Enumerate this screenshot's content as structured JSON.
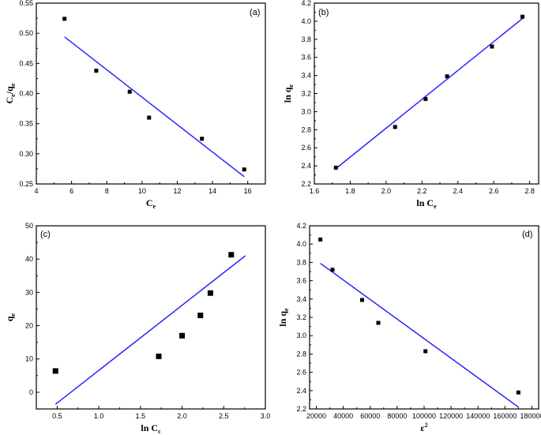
{
  "chart_data": [
    {
      "id": "a",
      "type": "scatter",
      "panel_label": "(a)",
      "xlabel": "Ce",
      "xlabel_main": "C",
      "xlabel_sub": "e",
      "ylabel": "Ce/qe",
      "ylabel_parts": [
        "C",
        "e",
        "/q",
        "e",
        ""
      ],
      "xlim": [
        4,
        17
      ],
      "ylim": [
        0.25,
        0.55
      ],
      "xticks": [
        4,
        6,
        8,
        10,
        12,
        14,
        16
      ],
      "yticks": [
        0.25,
        0.3,
        0.35,
        0.4,
        0.45,
        0.5,
        0.55
      ],
      "ytick_decimals": 2,
      "xtick_decimals": 0,
      "x": [
        5.6,
        7.4,
        9.3,
        10.4,
        13.4,
        15.8
      ],
      "y": [
        0.524,
        0.438,
        0.403,
        0.36,
        0.325,
        0.274
      ],
      "fit": {
        "x": [
          5.6,
          15.8
        ],
        "y": [
          0.494,
          0.262
        ]
      }
    },
    {
      "id": "b",
      "type": "scatter",
      "panel_label": "(b)",
      "xlabel": "ln Ce",
      "xlabel_main": "ln C",
      "xlabel_sub": "e",
      "ylabel": "ln qe",
      "ylabel_parts": [
        "ln q",
        "e",
        "",
        "",
        ""
      ],
      "xlim": [
        1.6,
        2.85
      ],
      "ylim": [
        2.2,
        4.2
      ],
      "xticks": [
        1.6,
        1.8,
        2.0,
        2.2,
        2.4,
        2.6,
        2.8
      ],
      "yticks": [
        2.2,
        2.4,
        2.6,
        2.8,
        3.0,
        3.2,
        3.4,
        3.6,
        3.8,
        4.0,
        4.2
      ],
      "ytick_decimals": 1,
      "xtick_decimals": 1,
      "x": [
        1.72,
        2.05,
        2.22,
        2.34,
        2.59,
        2.76
      ],
      "y": [
        2.38,
        2.83,
        3.14,
        3.39,
        3.72,
        4.05
      ],
      "fit": {
        "x": [
          1.72,
          2.76
        ],
        "y": [
          2.37,
          4.03
        ]
      }
    },
    {
      "id": "c",
      "type": "scatter",
      "panel_label": "(c)",
      "xlabel": "ln Cc",
      "xlabel_main": "ln C",
      "xlabel_sub": "c",
      "ylabel": "qe",
      "ylabel_parts": [
        "q",
        "e",
        "",
        "",
        ""
      ],
      "xlim": [
        0.25,
        3.0
      ],
      "ylim": [
        -5,
        50
      ],
      "xticks": [
        0.5,
        1.0,
        1.5,
        2.0,
        2.5,
        3.0
      ],
      "yticks": [
        0,
        10,
        20,
        30,
        40,
        50
      ],
      "ytick_decimals": 0,
      "xtick_decimals": 1,
      "x": [
        0.48,
        1.72,
        2.0,
        2.22,
        2.34,
        2.59
      ],
      "y": [
        6.4,
        10.8,
        17.0,
        23.1,
        29.8,
        41.3
      ],
      "fit": {
        "x": [
          0.48,
          2.76
        ],
        "y": [
          -3.6,
          41.0
        ]
      }
    },
    {
      "id": "d",
      "type": "scatter",
      "panel_label": "(d)",
      "xlabel": "ε2",
      "xlabel_main": "ε",
      "xlabel_sup": "2",
      "ylabel": "ln qe",
      "ylabel_parts": [
        "ln q",
        "e",
        "",
        "",
        ""
      ],
      "xlim": [
        15000,
        185000
      ],
      "ylim": [
        2.2,
        4.2
      ],
      "xticks": [
        20000,
        40000,
        60000,
        80000,
        100000,
        120000,
        140000,
        160000,
        180000
      ],
      "yticks": [
        2.2,
        2.4,
        2.6,
        2.8,
        3.0,
        3.2,
        3.4,
        3.6,
        3.8,
        4.0,
        4.2
      ],
      "ytick_decimals": 1,
      "xtick_decimals": 0,
      "x": [
        23000,
        32000,
        54000,
        66000,
        101000,
        170000
      ],
      "y": [
        4.05,
        3.72,
        3.39,
        3.14,
        2.83,
        2.38
      ],
      "fit": {
        "x": [
          23000,
          170000
        ],
        "y": [
          3.79,
          2.22
        ]
      }
    }
  ]
}
